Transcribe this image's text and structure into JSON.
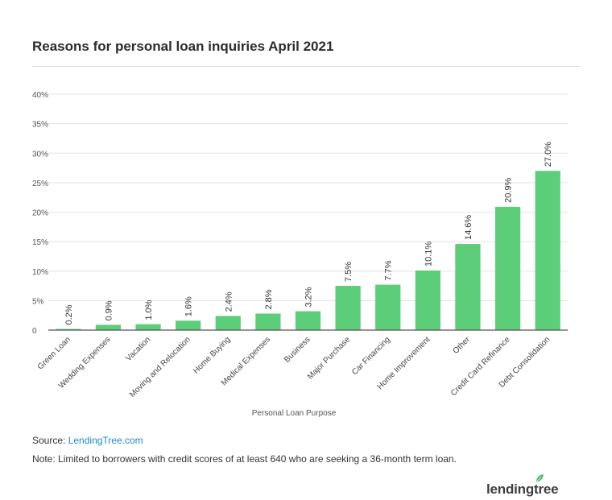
{
  "header": {
    "title": "Reasons for personal loan inquiries April 2021"
  },
  "chart_data": {
    "type": "bar",
    "title": "Reasons for personal loan inquiries April 2021",
    "xlabel": "Personal Loan Purpose",
    "ylabel": "",
    "ylim": [
      0,
      40
    ],
    "yticks": [
      0,
      5,
      10,
      15,
      20,
      25,
      30,
      35,
      40
    ],
    "ytick_labels": [
      "0",
      "5%",
      "10%",
      "15%",
      "20%",
      "25%",
      "30%",
      "35%",
      "40%"
    ],
    "grid": true,
    "legend": "none",
    "bar_color": "#5ccd79",
    "categories": [
      "Green Loan",
      "Wedding Expenses",
      "Vacation",
      "Moving and Relocation",
      "Home Buying",
      "Medical Expenses",
      "Business",
      "Major Purchase",
      "Car Financing",
      "Home Improvement",
      "Other",
      "Credit Card Refinance",
      "Debt Consolidation"
    ],
    "values": [
      0.2,
      0.9,
      1.0,
      1.6,
      2.4,
      2.8,
      3.2,
      7.5,
      7.7,
      10.1,
      14.6,
      20.9,
      27.0
    ],
    "data_labels": [
      "0.2%",
      "0.9%",
      "1.0%",
      "1.6%",
      "2.4%",
      "2.8%",
      "3.2%",
      "7.5%",
      "7.7%",
      "10.1%",
      "14.6%",
      "20.9%",
      "27.0%"
    ]
  },
  "footer": {
    "source_prefix": "Source: ",
    "source_link": "LendingTree.com",
    "note": "Note: Limited to borrowers with credit scores of at least 640 who are seeking a 36-month term loan.",
    "logo_text": "lendingtree",
    "logo_icon": "leaf-icon"
  }
}
